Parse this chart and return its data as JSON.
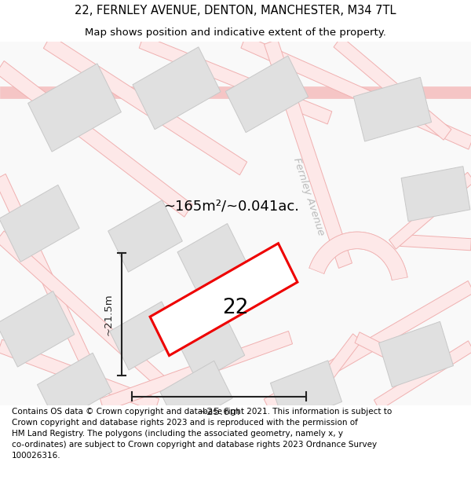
{
  "title_line1": "22, FERNLEY AVENUE, DENTON, MANCHESTER, M34 7TL",
  "title_line2": "Map shows position and indicative extent of the property.",
  "footer_text": "Contains OS data © Crown copyright and database right 2021. This information is subject to Crown copyright and database rights 2023 and is reproduced with the permission of HM Land Registry. The polygons (including the associated geometry, namely x, y co-ordinates) are subject to Crown copyright and database rights 2023 Ordnance Survey 100026316.",
  "area_text": "~165m²/~0.041ac.",
  "street_name": "Fernley Avenue",
  "plot_number": "22",
  "dim_width": "~25.6m",
  "dim_height": "~21.5m",
  "map_bg": "#f9f9f9",
  "building_color": "#e0e0e0",
  "building_edge": "#c8c8c8",
  "road_color": "#f5c5c5",
  "road_edge": "#f5c5c5",
  "plot_color": "#ffffff",
  "plot_edge": "#ee0000",
  "dim_color": "#222222",
  "street_color": "#bbbbbb",
  "title_fontsize": 10.5,
  "subtitle_fontsize": 9.5,
  "footer_fontsize": 7.5,
  "area_fontsize": 13,
  "plot_num_fontsize": 19,
  "dim_fontsize": 9.5
}
